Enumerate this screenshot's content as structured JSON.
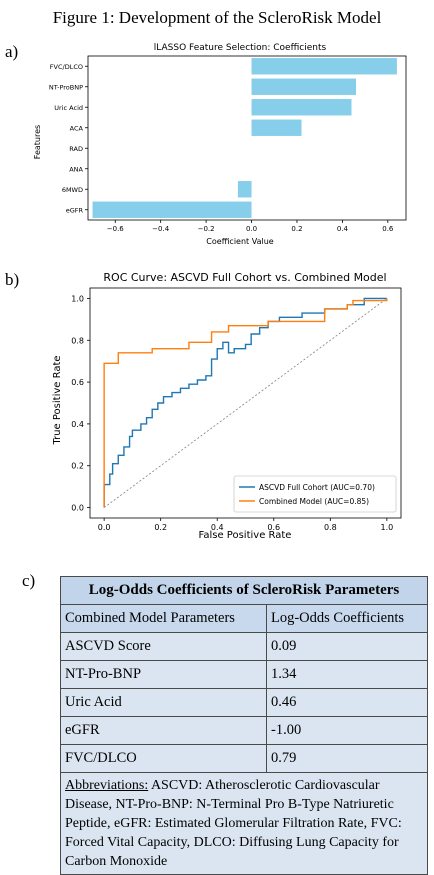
{
  "figure_title": "Figure 1: Development of the ScleroRisk Model",
  "panel_labels": [
    "a)",
    "b)",
    "c)"
  ],
  "chart_data": [
    {
      "type": "bar",
      "orientation": "horizontal",
      "title": "lLASSO Feature Selection: Coefficients",
      "xlabel": "Coefficient Value",
      "ylabel": "Features",
      "categories": [
        "FVC/DLCO",
        "NT-ProBNP",
        "Uric Acid",
        "ACA",
        "RAD",
        "ANA",
        "6MWD",
        "eGFR"
      ],
      "values": [
        0.64,
        0.46,
        0.44,
        0.22,
        0.0,
        0.0,
        -0.06,
        -0.7
      ],
      "xlim": [
        -0.72,
        0.68
      ],
      "xticks": [
        "−0.6",
        "−0.4",
        "−0.2",
        "0.0",
        "0.2",
        "0.4",
        "0.6"
      ],
      "xtick_values": [
        -0.6,
        -0.4,
        -0.2,
        0.0,
        0.2,
        0.4,
        0.6
      ],
      "bar_color": "#87ceeb",
      "grid": false
    },
    {
      "type": "line",
      "title": "ROC Curve: ASCVD Full Cohort vs. Combined Model",
      "xlabel": "False Positive Rate",
      "ylabel": "True Positive Rate",
      "xlim": [
        -0.05,
        1.05
      ],
      "ylim": [
        -0.05,
        1.05
      ],
      "xticks": [
        "0.0",
        "0.2",
        "0.4",
        "0.6",
        "0.8",
        "1.0"
      ],
      "yticks": [
        "0.0",
        "0.2",
        "0.4",
        "0.6",
        "0.8",
        "1.0"
      ],
      "tick_values": [
        0.0,
        0.2,
        0.4,
        0.6,
        0.8,
        1.0
      ],
      "legend_position": "lower-right",
      "grid": false,
      "series": [
        {
          "name": "ASCVD Full Cohort (AUC=0.70)",
          "color": "#1f77b4",
          "points": [
            [
              0,
              0
            ],
            [
              0,
              0.11
            ],
            [
              0.02,
              0.11
            ],
            [
              0.02,
              0.16
            ],
            [
              0.03,
              0.16
            ],
            [
              0.03,
              0.21
            ],
            [
              0.05,
              0.21
            ],
            [
              0.05,
              0.25
            ],
            [
              0.07,
              0.25
            ],
            [
              0.07,
              0.29
            ],
            [
              0.09,
              0.29
            ],
            [
              0.09,
              0.34
            ],
            [
              0.1,
              0.34
            ],
            [
              0.1,
              0.37
            ],
            [
              0.13,
              0.37
            ],
            [
              0.13,
              0.4
            ],
            [
              0.15,
              0.4
            ],
            [
              0.15,
              0.43
            ],
            [
              0.17,
              0.43
            ],
            [
              0.17,
              0.47
            ],
            [
              0.19,
              0.47
            ],
            [
              0.19,
              0.5
            ],
            [
              0.21,
              0.5
            ],
            [
              0.21,
              0.53
            ],
            [
              0.24,
              0.53
            ],
            [
              0.24,
              0.55
            ],
            [
              0.27,
              0.55
            ],
            [
              0.27,
              0.57
            ],
            [
              0.3,
              0.57
            ],
            [
              0.3,
              0.59
            ],
            [
              0.33,
              0.59
            ],
            [
              0.33,
              0.61
            ],
            [
              0.36,
              0.61
            ],
            [
              0.36,
              0.63
            ],
            [
              0.38,
              0.63
            ],
            [
              0.38,
              0.71
            ],
            [
              0.4,
              0.71
            ],
            [
              0.4,
              0.76
            ],
            [
              0.42,
              0.76
            ],
            [
              0.42,
              0.79
            ],
            [
              0.44,
              0.79
            ],
            [
              0.44,
              0.74
            ],
            [
              0.46,
              0.74
            ],
            [
              0.46,
              0.76
            ],
            [
              0.5,
              0.76
            ],
            [
              0.5,
              0.78
            ],
            [
              0.52,
              0.78
            ],
            [
              0.52,
              0.83
            ],
            [
              0.55,
              0.83
            ],
            [
              0.55,
              0.86
            ],
            [
              0.58,
              0.86
            ],
            [
              0.58,
              0.89
            ],
            [
              0.62,
              0.89
            ],
            [
              0.62,
              0.91
            ],
            [
              0.7,
              0.91
            ],
            [
              0.7,
              0.93
            ],
            [
              0.78,
              0.93
            ],
            [
              0.78,
              0.95
            ],
            [
              0.86,
              0.95
            ],
            [
              0.86,
              0.97
            ],
            [
              0.92,
              0.97
            ],
            [
              0.92,
              1.0
            ],
            [
              1.0,
              1.0
            ]
          ]
        },
        {
          "name": "Combined Model (AUC=0.85)",
          "color": "#ff7f0e",
          "points": [
            [
              0,
              0
            ],
            [
              0,
              0.69
            ],
            [
              0.05,
              0.69
            ],
            [
              0.05,
              0.74
            ],
            [
              0.17,
              0.74
            ],
            [
              0.17,
              0.76
            ],
            [
              0.3,
              0.76
            ],
            [
              0.3,
              0.79
            ],
            [
              0.38,
              0.79
            ],
            [
              0.38,
              0.84
            ],
            [
              0.44,
              0.84
            ],
            [
              0.44,
              0.87
            ],
            [
              0.58,
              0.87
            ],
            [
              0.58,
              0.89
            ],
            [
              0.78,
              0.89
            ],
            [
              0.78,
              0.95
            ],
            [
              0.86,
              0.95
            ],
            [
              0.86,
              0.97
            ],
            [
              0.88,
              0.97
            ],
            [
              0.88,
              0.99
            ],
            [
              1.0,
              0.99
            ],
            [
              1.0,
              1.0
            ]
          ]
        }
      ]
    }
  ],
  "table": {
    "title": "Log-Odds Coefficients of ScleroRisk Parameters",
    "col_headers": [
      "Combined Model Parameters",
      "Log-Odds Coefficients"
    ],
    "rows": [
      {
        "param": "ASCVD Score",
        "coef": "0.09"
      },
      {
        "param": "NT-Pro-BNP",
        "coef": "1.34"
      },
      {
        "param": "Uric Acid",
        "coef": "0.46"
      },
      {
        "param": "eGFR",
        "coef": "-1.00"
      },
      {
        "param": "FVC/DLCO",
        "coef": "0.79"
      }
    ],
    "abbreviations_label": "Abbreviations:",
    "abbreviations_text": " ASCVD: Atherosclerotic Cardiovascular Disease, NT-Pro-BNP: N-Terminal Pro B-Type Natriuretic Peptide, eGFR: Estimated Glomerular Filtration Rate, FVC: Forced Vital Capacity, DLCO: Diffusing Lung Capacity for Carbon Monoxide"
  }
}
